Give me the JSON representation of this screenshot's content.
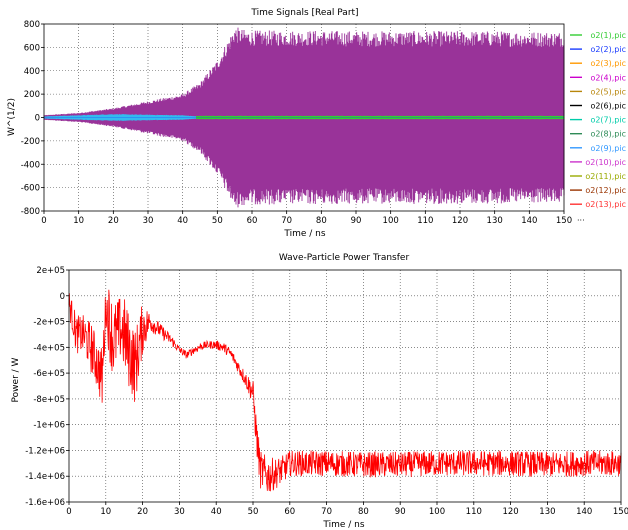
{
  "chart_data": [
    {
      "type": "line",
      "title": "Time Signals [Real Part]",
      "xlabel": "Time / ns",
      "ylabel": "W^(1/2)",
      "xlim": [
        0,
        150
      ],
      "ylim": [
        -800,
        800
      ],
      "xticks": [
        0,
        10,
        20,
        30,
        40,
        50,
        60,
        70,
        80,
        90,
        100,
        110,
        120,
        130,
        140,
        150
      ],
      "yticks": [
        -800,
        -600,
        -400,
        -200,
        0,
        200,
        400,
        600,
        800
      ],
      "ytick_labels": [
        "-800",
        "-600",
        "-400",
        "-200",
        "0",
        "200",
        "400",
        "600",
        "800"
      ],
      "grid": "dotted",
      "legend_position": "right",
      "legend_more": "...",
      "series": [
        {
          "name": "o2(1),pic",
          "color": "#33cc33"
        },
        {
          "name": "o2(2),pic",
          "color": "#1a3cff"
        },
        {
          "name": "o2(3),pic",
          "color": "#ff9900"
        },
        {
          "name": "o2(4),pic",
          "color": "#cc00cc"
        },
        {
          "name": "o2(5),pic",
          "color": "#b8860b"
        },
        {
          "name": "o2(6),pic",
          "color": "#000000"
        },
        {
          "name": "o2(7),pic",
          "color": "#00ccaa"
        },
        {
          "name": "o2(8),pic",
          "color": "#2e8b57"
        },
        {
          "name": "o2(9),pic",
          "color": "#3399ff"
        },
        {
          "name": "o2(10),pic",
          "color": "#cc33cc"
        },
        {
          "name": "o2(11),pic",
          "color": "#99aa00"
        },
        {
          "name": "o2(12),pic",
          "color": "#993300"
        },
        {
          "name": "o2(13),pic",
          "color": "#ff3333"
        }
      ],
      "envelope": {
        "name": "o2(10),pic",
        "color": "#993399",
        "t": [
          0,
          10,
          20,
          30,
          40,
          45,
          50,
          53,
          55,
          58,
          60,
          70,
          80,
          90,
          100,
          110,
          120,
          130,
          140,
          150
        ],
        "amplitude": [
          20,
          40,
          80,
          140,
          200,
          300,
          490,
          660,
          780,
          750,
          745,
          745,
          745,
          740,
          740,
          740,
          740,
          740,
          735,
          735
        ]
      },
      "small_band": {
        "color": "#33bbee",
        "t": [
          0,
          10,
          20,
          30,
          40,
          44
        ],
        "amplitude": [
          10,
          20,
          30,
          25,
          20,
          10
        ]
      },
      "green_band": {
        "color": "#33cc33",
        "t": [
          44,
          150
        ],
        "amplitude": [
          15,
          15
        ]
      }
    },
    {
      "type": "line",
      "title": "Wave-Particle Power Transfer",
      "xlabel": "Time / ns",
      "ylabel": "Power / W",
      "xlim": [
        0,
        150
      ],
      "ylim": [
        -1600000,
        200000
      ],
      "xticks": [
        0,
        10,
        20,
        30,
        40,
        50,
        60,
        70,
        80,
        90,
        100,
        110,
        120,
        130,
        140,
        150
      ],
      "yticks": [
        -1600000,
        -1400000,
        -1200000,
        -1000000,
        -800000,
        -600000,
        -400000,
        -200000,
        0,
        200000
      ],
      "ytick_labels": [
        "-1.6e+06",
        "-1.4e+06",
        "-1.2e+06",
        "-1e+06",
        "-8e+05",
        "-6e+05",
        "-4e+05",
        "-2e+05",
        "0",
        "2e+05"
      ],
      "grid": "dotted",
      "series": [
        {
          "name": "",
          "color": "#ff0000",
          "t": [
            0,
            2,
            4,
            6,
            8,
            9,
            10,
            11,
            12,
            14,
            15,
            16,
            18,
            20,
            22,
            24,
            26,
            28,
            30,
            32,
            34,
            36,
            38,
            40,
            42,
            44,
            46,
            48,
            50,
            51,
            52,
            54,
            56,
            58,
            60,
            65,
            70,
            80,
            90,
            100,
            110,
            120,
            130,
            140,
            150
          ],
          "center": [
            -50000,
            -300000,
            -300000,
            -400000,
            -550000,
            -650000,
            -80000,
            -200000,
            -350000,
            -250000,
            -300000,
            -400000,
            -550000,
            -250000,
            -200000,
            -250000,
            -300000,
            -350000,
            -420000,
            -460000,
            -420000,
            -390000,
            -380000,
            -380000,
            -400000,
            -450000,
            -550000,
            -650000,
            -750000,
            -1100000,
            -1350000,
            -1400000,
            -1380000,
            -1350000,
            -1300000,
            -1300000,
            -1300000,
            -1310000,
            -1310000,
            -1300000,
            -1300000,
            -1300000,
            -1310000,
            -1300000,
            -1300000
          ],
          "amplitude": [
            100000,
            150000,
            150000,
            200000,
            200000,
            250000,
            150000,
            300000,
            300000,
            250000,
            300000,
            300000,
            300000,
            200000,
            80000,
            60000,
            50000,
            40000,
            30000,
            30000,
            30000,
            30000,
            30000,
            35000,
            40000,
            40000,
            50000,
            60000,
            100000,
            150000,
            150000,
            150000,
            120000,
            110000,
            100000,
            100000,
            100000,
            100000,
            100000,
            100000,
            100000,
            100000,
            100000,
            100000,
            100000
          ]
        }
      ]
    }
  ]
}
